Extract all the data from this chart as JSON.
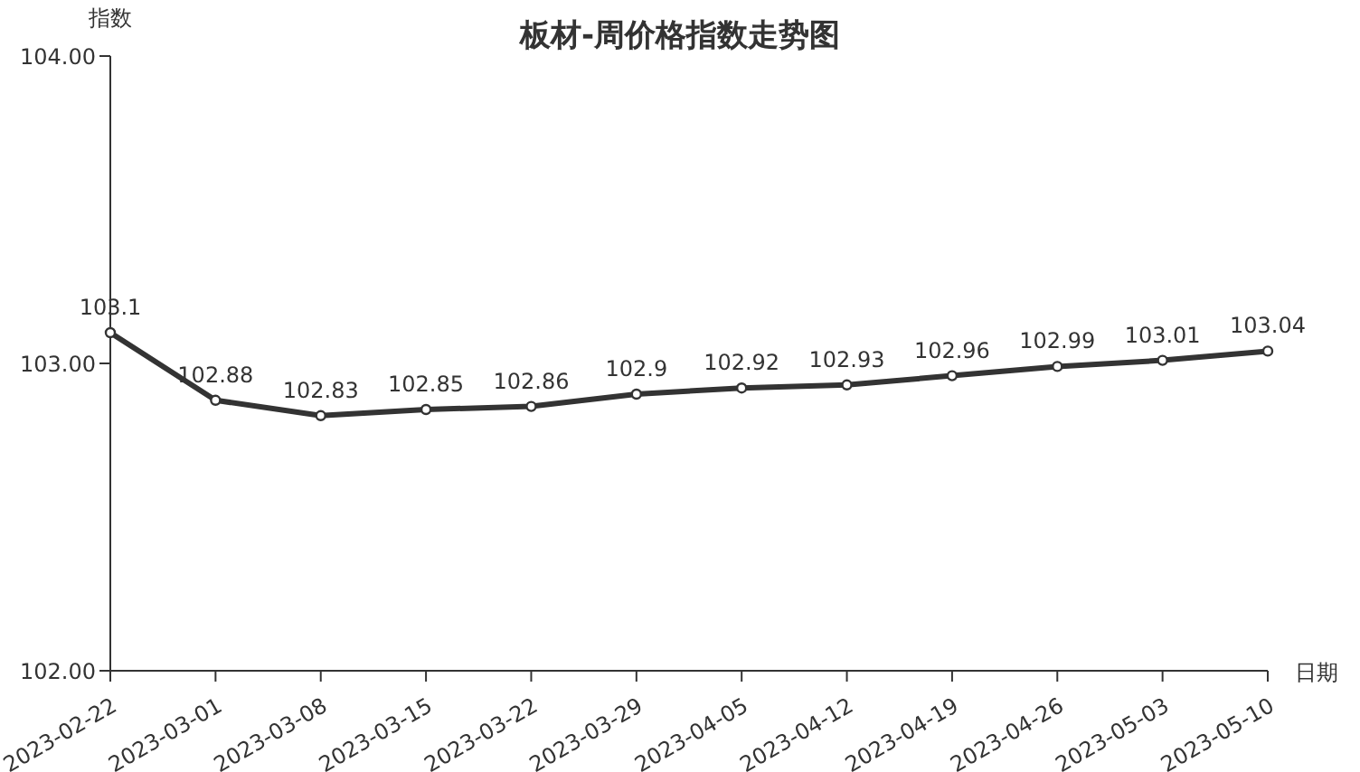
{
  "chart_data": {
    "type": "line",
    "title": "板材-周价格指数走势图",
    "xlabel": "日期",
    "ylabel": "指数",
    "categories": [
      "2023-02-22",
      "2023-03-01",
      "2023-03-08",
      "2023-03-15",
      "2023-03-22",
      "2023-03-29",
      "2023-04-05",
      "2023-04-12",
      "2023-04-19",
      "2023-04-26",
      "2023-05-03",
      "2023-05-10"
    ],
    "series": [
      {
        "color": "#333333",
        "values": [
          103.1,
          102.88,
          102.83,
          102.85,
          102.86,
          102.9,
          102.92,
          102.93,
          102.96,
          102.99,
          103.01,
          103.04
        ]
      }
    ],
    "ylim": [
      102,
      104
    ],
    "yticks": [
      {
        "value": 102,
        "label": "102.00"
      },
      {
        "value": 103,
        "label": "103.00"
      },
      {
        "value": 104,
        "label": "104.00"
      }
    ],
    "grid": false,
    "legend": false,
    "marker": "circle",
    "line_style": "solid",
    "data_labels": true
  }
}
